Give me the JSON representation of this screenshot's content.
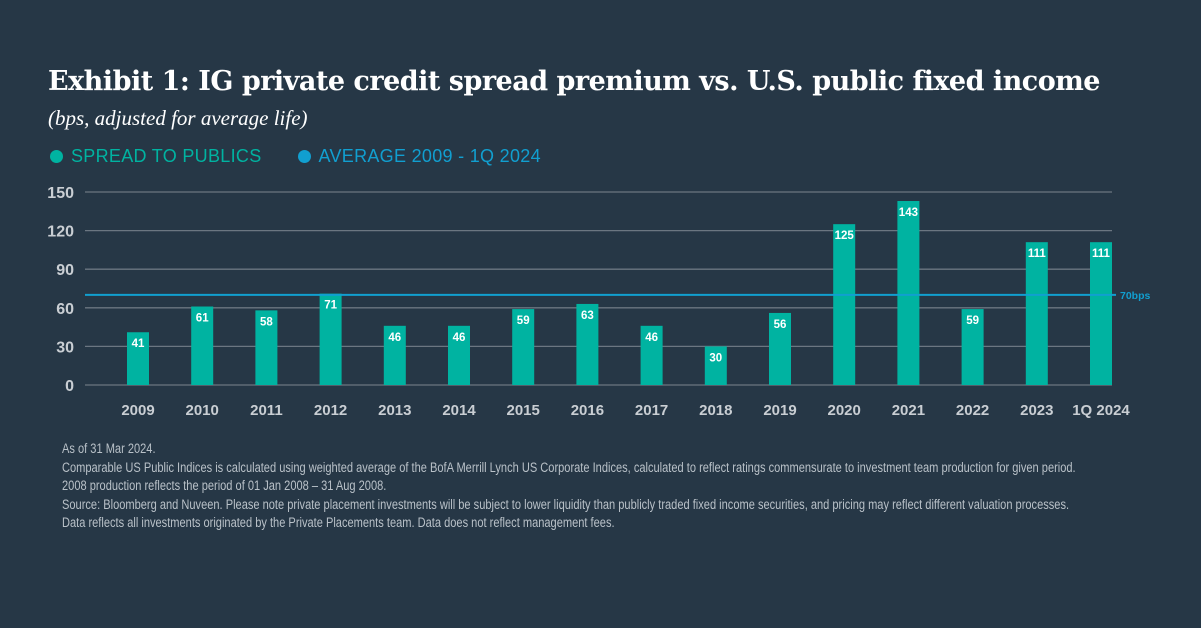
{
  "chart_data": {
    "type": "bar",
    "title": "Exhibit 1: IG private credit spread premium vs. U.S. public fixed income",
    "subtitle": "(bps, adjusted for average life)",
    "categories": [
      "2009",
      "2010",
      "2011",
      "2012",
      "2013",
      "2014",
      "2015",
      "2016",
      "2017",
      "2018",
      "2019",
      "2020",
      "2021",
      "2022",
      "2023",
      "1Q 2024"
    ],
    "series": [
      {
        "name": "SPREAD TO PUBLICS",
        "color": "#00b3a1",
        "values": [
          41,
          61,
          58,
          71,
          46,
          46,
          59,
          63,
          46,
          30,
          56,
          125,
          143,
          59,
          111,
          111
        ]
      }
    ],
    "average": {
      "name": "AVERAGE 2009 - 1Q 2024",
      "color": "#119fd0",
      "value": 70,
      "label": "70bps"
    },
    "yticks": [
      0,
      30,
      60,
      90,
      120,
      150
    ],
    "ylim": [
      0,
      150
    ],
    "grid": true,
    "legend": "top-left"
  },
  "notes": [
    "As of 31 Mar 2024.",
    "Comparable US Public Indices is calculated using weighted average of the BofA Merrill Lynch US Corporate Indices, calculated to reflect ratings commensurate to investment team production for given period.",
    "2008 production reflects the period of 01 Jan 2008 – 31 Aug 2008.",
    "Source: Bloomberg and Nuveen. Please note private placement investments will be subject to lower liquidity than publicly traded fixed income securities, and pricing may reflect different valuation processes.",
    "Data reflects all investments originated by the Private Placements team. Data does not reflect management fees."
  ]
}
